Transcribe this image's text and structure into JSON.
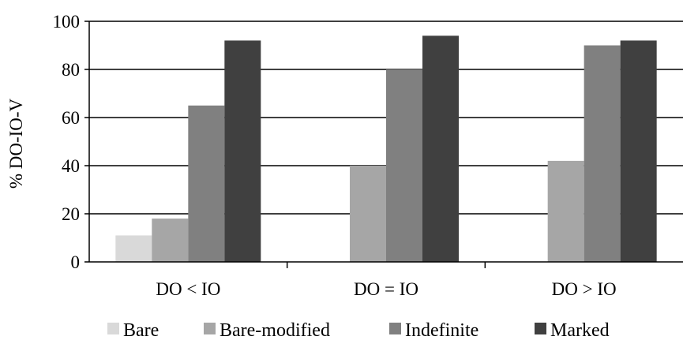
{
  "chart_data": {
    "type": "bar",
    "title": "",
    "xlabel": "",
    "ylabel": "% DO-IO-V",
    "ylim": [
      0,
      100
    ],
    "yticks": [
      0,
      20,
      40,
      60,
      80,
      100
    ],
    "grid": true,
    "legend_position": "bottom",
    "categories": [
      "DO < IO",
      "DO = IO",
      "DO > IO"
    ],
    "series": [
      {
        "name": "Bare",
        "color": "#d9d9d9",
        "values": [
          11,
          0,
          0
        ]
      },
      {
        "name": "Bare-modified",
        "color": "#a6a6a6",
        "values": [
          18,
          40,
          42
        ]
      },
      {
        "name": "Indefinite",
        "color": "#808080",
        "values": [
          65,
          80,
          90
        ]
      },
      {
        "name": "Marked",
        "color": "#404040",
        "values": [
          92,
          94,
          92
        ]
      }
    ]
  }
}
